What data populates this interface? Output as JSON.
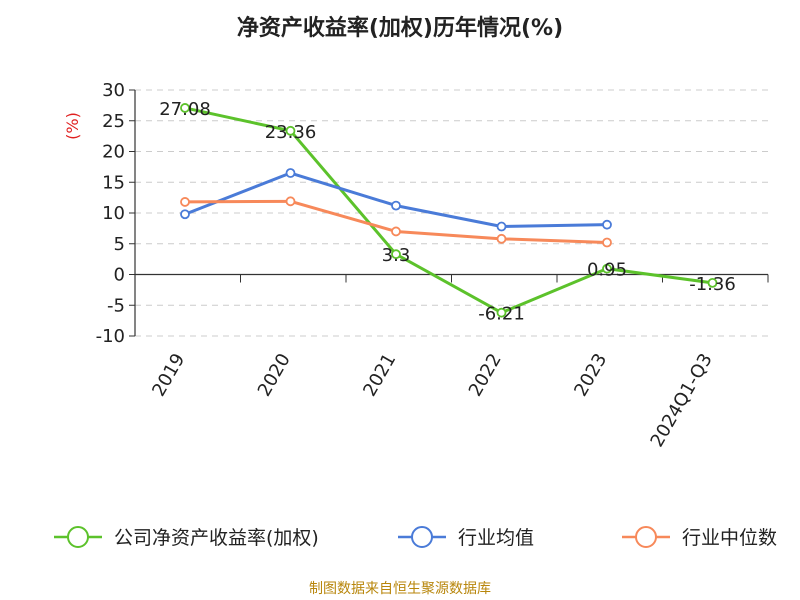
{
  "chart_data": {
    "type": "line",
    "title": "净资产收益率(加权)历年情况(%)",
    "ylabel": "(%)",
    "xlabel": "",
    "ylim": [
      -10,
      30
    ],
    "yticks": [
      30,
      25,
      20,
      15,
      10,
      5,
      0,
      -5,
      -10
    ],
    "categories": [
      "2019",
      "2020",
      "2021",
      "2022",
      "2023",
      "2024Q1-Q3"
    ],
    "grid": true,
    "legend_position": "bottom",
    "series": [
      {
        "name": "公司净资产收益率(加权)",
        "color": "#5cc22b",
        "values": [
          27.08,
          23.36,
          3.3,
          -6.21,
          0.95,
          -1.36
        ],
        "labels": [
          "27.08",
          "23.36",
          "3.3",
          "-6.21",
          "0.95",
          "-1.36"
        ]
      },
      {
        "name": "行业均值",
        "color": "#4a7bd8",
        "values": [
          9.8,
          16.5,
          11.2,
          7.8,
          8.1,
          null
        ]
      },
      {
        "name": "行业中位数",
        "color": "#f7895a",
        "values": [
          11.8,
          11.9,
          7.0,
          5.8,
          5.2,
          null
        ]
      }
    ]
  },
  "footer": "制图数据来自恒生聚源数据库"
}
